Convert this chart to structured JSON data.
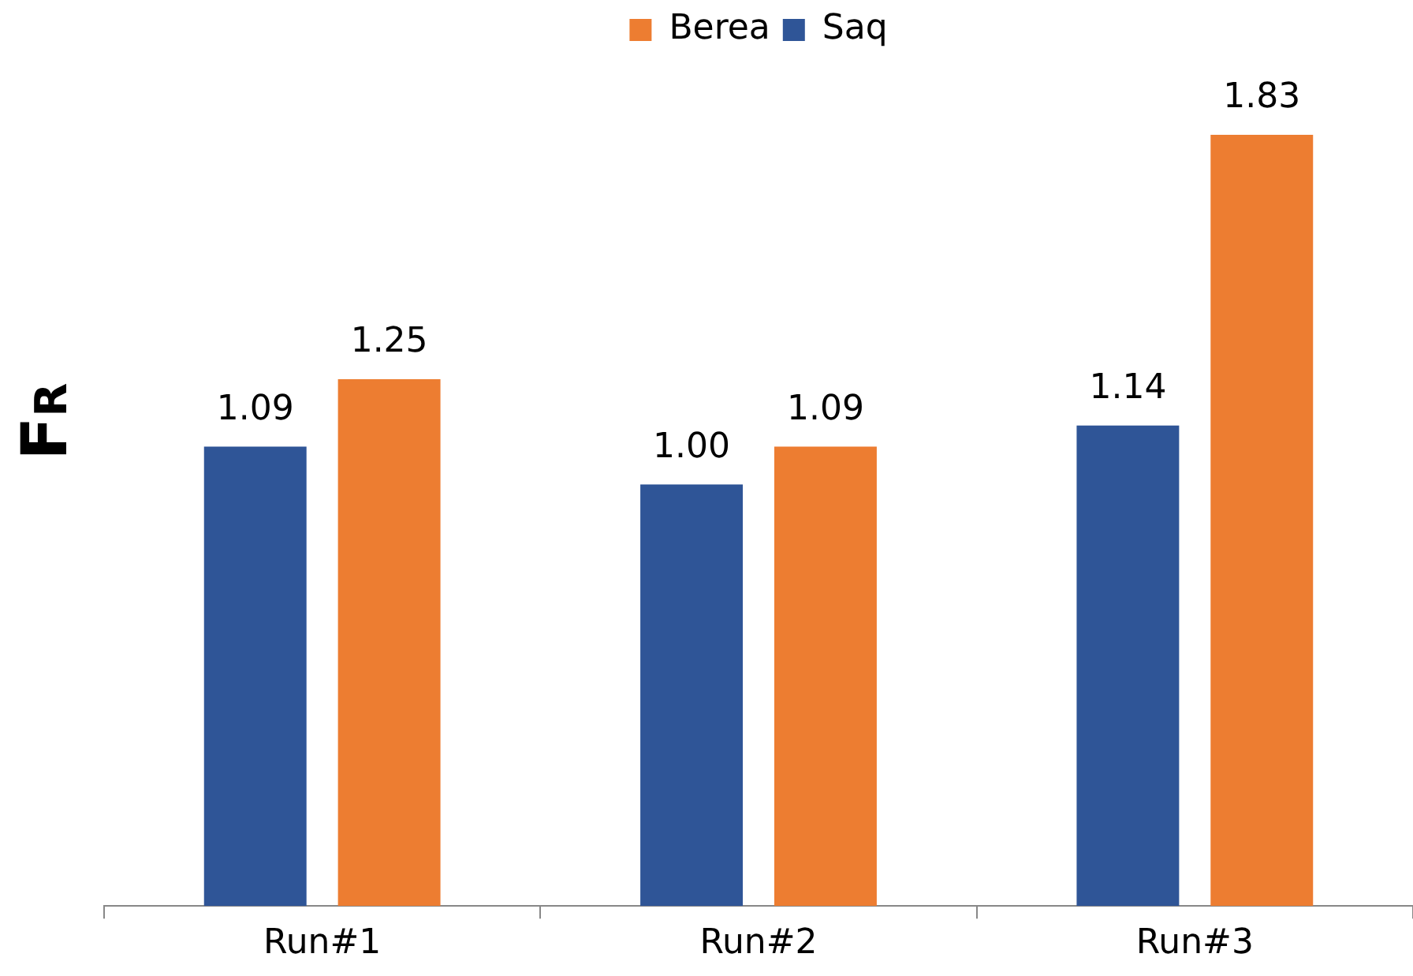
{
  "chart_data": {
    "type": "bar",
    "ylabel": "F$_{R}$",
    "categories": [
      "Run#1",
      "Run#2",
      "Run#3"
    ],
    "series": [
      {
        "name": "Saq",
        "color": "#2f5597",
        "values": [
          1.09,
          1.0,
          1.14
        ],
        "value_labels": [
          "1.09",
          "1.00",
          "1.14"
        ]
      },
      {
        "name": "Berea",
        "color": "#ed7d31",
        "values": [
          1.25,
          1.09,
          1.83
        ],
        "value_labels": [
          "1.25",
          "1.09",
          "1.83"
        ]
      }
    ],
    "legend": "top",
    "grid": false
  }
}
